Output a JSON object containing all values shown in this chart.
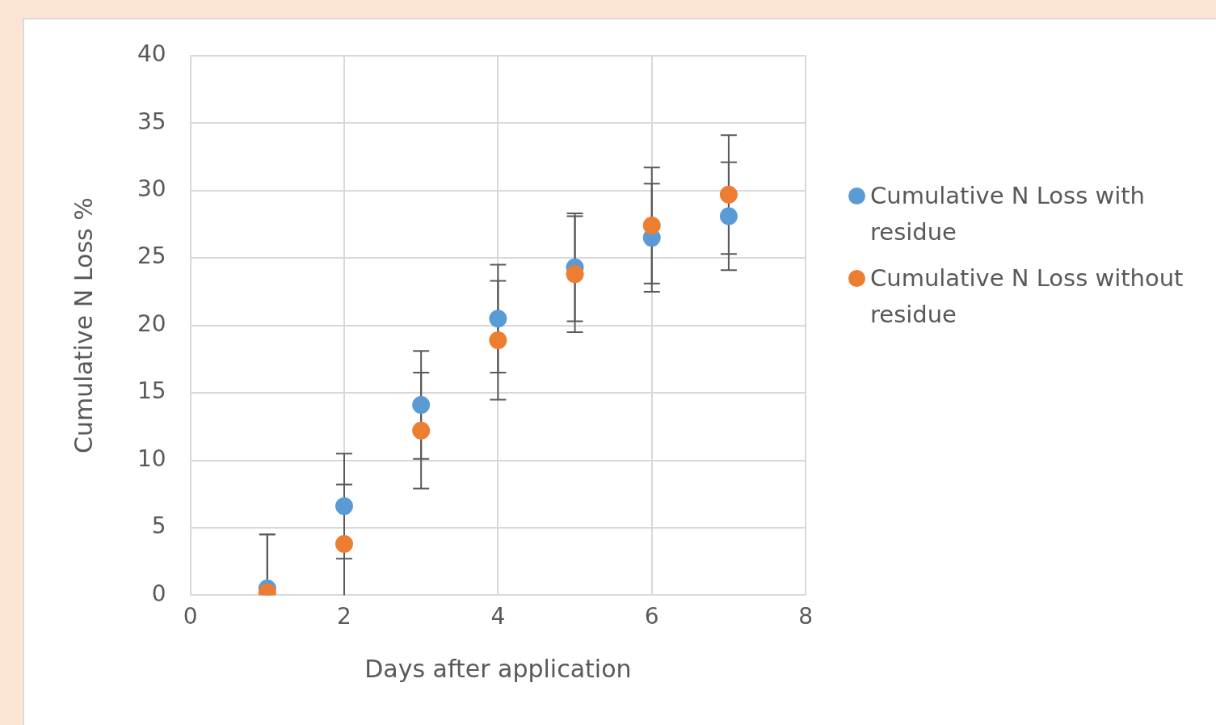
{
  "chart_data": {
    "type": "scatter",
    "xlabel": "Days after application",
    "ylabel": "Cumulative N Loss %",
    "xlim": [
      0,
      8
    ],
    "xticks": [
      0,
      2,
      4,
      6,
      8
    ],
    "ylim": [
      0,
      40
    ],
    "yticks": [
      0,
      5,
      10,
      15,
      20,
      25,
      30,
      35,
      40
    ],
    "grid": true,
    "legend": "right",
    "marker": "circle",
    "series": [
      {
        "name": "Cumulative N Loss with residue",
        "color": "#5b9bd5",
        "x": [
          1,
          2,
          3,
          4,
          5,
          6,
          7
        ],
        "values": [
          0.5,
          6.6,
          14.1,
          20.5,
          24.3,
          26.5,
          28.1
        ],
        "errors": [
          4,
          3.9,
          4,
          4,
          4,
          4,
          4
        ]
      },
      {
        "name": "Cumulative N Loss without residue",
        "color": "#ed7d31",
        "x": [
          1,
          2,
          3,
          4,
          5,
          6,
          7
        ],
        "values": [
          0.2,
          3.8,
          12.2,
          18.9,
          23.8,
          27.4,
          29.7
        ],
        "errors": [
          4.3,
          4.4,
          4.3,
          4.4,
          4.3,
          4.3,
          4.4
        ]
      }
    ]
  }
}
